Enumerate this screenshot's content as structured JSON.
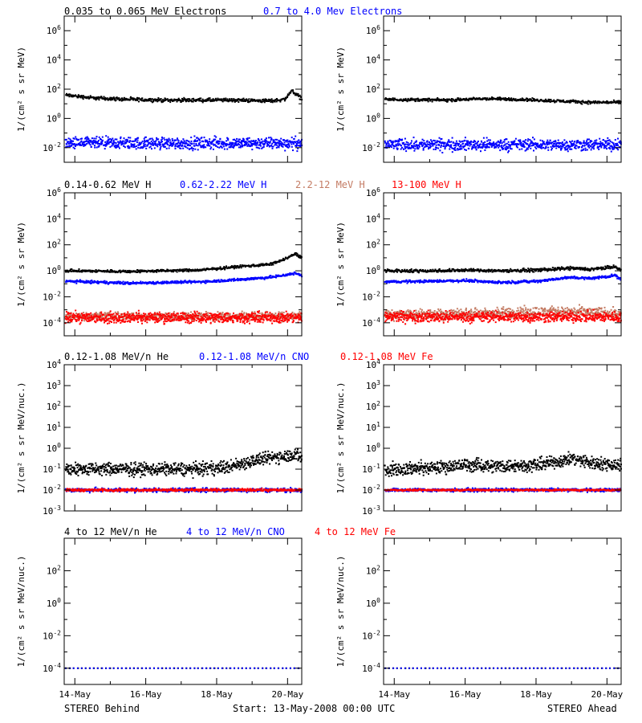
{
  "footer": {
    "left": "STEREO Behind",
    "center": "Start: 13-May-2008 00:00 UTC",
    "right": "STEREO Ahead"
  },
  "x_axis": {
    "unit": "days since 13-May-2008 00:00 UTC",
    "range": [
      0.7,
      7.4
    ],
    "tick_labels": [
      "14-May",
      "16-May",
      "18-May",
      "20-May"
    ],
    "tick_values": [
      1,
      3,
      5,
      7
    ]
  },
  "rows": [
    {
      "legend": [
        {
          "text": "0.035 to 0.065 MeV Electrons",
          "color": "#000000"
        },
        {
          "text": "0.7 to 4.0 Mev Electrons",
          "color": "#0000ff"
        }
      ],
      "ylabel": "1/(cm² s sr MeV)",
      "yrange_log10": [
        -3,
        7
      ],
      "ytick_exponents": [
        -2,
        0,
        2,
        4,
        6
      ]
    },
    {
      "legend": [
        {
          "text": "0.14-0.62 MeV H",
          "color": "#000000"
        },
        {
          "text": "0.62-2.22 MeV H",
          "color": "#0000ff"
        },
        {
          "text": "2.2-12 MeV H",
          "color": "#c47c64"
        },
        {
          "text": "13-100 MeV H",
          "color": "#ff0000"
        }
      ],
      "ylabel": "1/(cm² s sr MeV)",
      "yrange_log10": [
        -5,
        6
      ],
      "ytick_exponents": [
        -4,
        -2,
        0,
        2,
        4,
        6
      ]
    },
    {
      "legend": [
        {
          "text": "0.12-1.08 MeV/n He",
          "color": "#000000"
        },
        {
          "text": "0.12-1.08 MeV/n CNO",
          "color": "#0000ff"
        },
        {
          "text": "0.12-1.08 MeV Fe",
          "color": "#ff0000"
        }
      ],
      "ylabel": "1/(cm² s sr MeV/nuc.)",
      "yrange_log10": [
        -3,
        4
      ],
      "ytick_exponents": [
        -3,
        -2,
        -1,
        0,
        1,
        2,
        3,
        4
      ]
    },
    {
      "legend": [
        {
          "text": "4 to 12 MeV/n He",
          "color": "#000000"
        },
        {
          "text": "4 to 12 MeV/n CNO",
          "color": "#0000ff"
        },
        {
          "text": "4 to 12 MeV Fe",
          "color": "#ff0000"
        }
      ],
      "ylabel": "1/(cm² s sr MeV/nuc.)",
      "yrange_log10": [
        -5,
        4
      ],
      "ytick_exponents": [
        -4,
        -2,
        0,
        2
      ]
    }
  ],
  "chart_data": [
    {
      "type": "scatter",
      "spacecraft": "STEREO Behind",
      "row": 0,
      "yscale": "log",
      "series": [
        {
          "name": "0.035 to 0.065 MeV Electrons",
          "color": "#000000",
          "x": [
            0.7,
            1.5,
            2.5,
            3.5,
            4.5,
            5.5,
            6.5,
            6.9,
            7.1,
            7.4
          ],
          "y_log10": [
            1.6,
            1.4,
            1.3,
            1.25,
            1.25,
            1.25,
            1.2,
            1.3,
            1.9,
            1.3
          ],
          "scatter_dex": 0.06
        },
        {
          "name": "0.7 to 4.0 Mev Electrons",
          "color": "#0000ff",
          "x": [
            0.7,
            7.4
          ],
          "y_log10": [
            -1.7,
            -1.7
          ],
          "scatter_dex": 0.2
        }
      ]
    },
    {
      "type": "scatter",
      "spacecraft": "STEREO Ahead",
      "row": 0,
      "yscale": "log",
      "series": [
        {
          "name": "0.035 to 0.065 MeV Electrons",
          "color": "#000000",
          "x": [
            0.7,
            2.5,
            3.5,
            4.5,
            5.5,
            6.5,
            7.4
          ],
          "y_log10": [
            1.3,
            1.25,
            1.35,
            1.3,
            1.2,
            1.1,
            1.1
          ],
          "scatter_dex": 0.05
        },
        {
          "name": "0.7 to 4.0 Mev Electrons",
          "color": "#0000ff",
          "x": [
            0.7,
            7.4
          ],
          "y_log10": [
            -1.8,
            -1.8
          ],
          "scatter_dex": 0.2
        }
      ]
    },
    {
      "type": "scatter",
      "spacecraft": "STEREO Behind",
      "row": 1,
      "yscale": "log",
      "series": [
        {
          "name": "0.14-0.62 MeV H",
          "color": "#000000",
          "x": [
            0.7,
            2.5,
            4.5,
            5.5,
            6.5,
            6.9,
            7.2,
            7.4
          ],
          "y_log10": [
            0.0,
            -0.05,
            0.05,
            0.3,
            0.5,
            0.9,
            1.3,
            1.0
          ],
          "scatter_dex": 0.05
        },
        {
          "name": "0.62-2.22 MeV H",
          "color": "#0000ff",
          "x": [
            0.7,
            2.5,
            4.5,
            5.5,
            6.5,
            7.2,
            7.4
          ],
          "y_log10": [
            -0.8,
            -0.95,
            -0.85,
            -0.7,
            -0.5,
            -0.2,
            -0.35
          ],
          "scatter_dex": 0.05
        },
        {
          "name": "2.2-12 MeV H",
          "color": "#c47c64",
          "x": [
            0.7,
            7.4
          ],
          "y_log10": [
            -3.5,
            -3.5
          ],
          "scatter_dex": 0.15
        },
        {
          "name": "13-100 MeV H",
          "color": "#ff0000",
          "x": [
            0.7,
            7.4
          ],
          "y_log10": [
            -3.6,
            -3.6
          ],
          "scatter_dex": 0.2
        }
      ]
    },
    {
      "type": "scatter",
      "spacecraft": "STEREO Ahead",
      "row": 1,
      "yscale": "log",
      "series": [
        {
          "name": "0.14-0.62 MeV H",
          "color": "#000000",
          "x": [
            0.7,
            2.0,
            3.0,
            4.0,
            5.0,
            6.0,
            6.5,
            7.2,
            7.4
          ],
          "y_log10": [
            0.0,
            0.0,
            0.05,
            0.0,
            0.05,
            0.2,
            0.1,
            0.3,
            0.0
          ],
          "scatter_dex": 0.06
        },
        {
          "name": "0.62-2.22 MeV H",
          "color": "#0000ff",
          "x": [
            0.7,
            2.0,
            3.0,
            4.0,
            5.0,
            6.0,
            6.5,
            7.2,
            7.4
          ],
          "y_log10": [
            -0.85,
            -0.8,
            -0.75,
            -0.9,
            -0.8,
            -0.5,
            -0.6,
            -0.35,
            -0.7
          ],
          "scatter_dex": 0.05
        },
        {
          "name": "2.2-12 MeV H",
          "color": "#c47c64",
          "x": [
            0.7,
            3.5,
            5.0,
            6.5,
            7.4
          ],
          "y_log10": [
            -3.4,
            -3.3,
            -3.15,
            -3.2,
            -3.3
          ],
          "scatter_dex": 0.2
        },
        {
          "name": "13-100 MeV H",
          "color": "#ff0000",
          "x": [
            0.7,
            7.4
          ],
          "y_log10": [
            -3.55,
            -3.55
          ],
          "scatter_dex": 0.2
        }
      ]
    },
    {
      "type": "scatter",
      "spacecraft": "STEREO Behind",
      "row": 2,
      "yscale": "log",
      "series": [
        {
          "name": "0.12-1.08 MeV/n He",
          "color": "#000000",
          "x": [
            0.7,
            2.5,
            4.5,
            5.3,
            6.0,
            6.7,
            7.2,
            7.4
          ],
          "y_log10": [
            -1.0,
            -1.0,
            -1.0,
            -0.9,
            -0.6,
            -0.4,
            -0.3,
            -0.5
          ],
          "scatter_dex": 0.15
        },
        {
          "name": "0.12-1.08 MeV/n CNO",
          "color": "#0000ff",
          "x": [
            0.7,
            7.4
          ],
          "y_log10": [
            -2.0,
            -2.0
          ],
          "scatter_dex": 0.05
        },
        {
          "name": "0.12-1.08 MeV Fe",
          "color": "#ff0000",
          "x": [
            0.7,
            7.4
          ],
          "y_log10": [
            -2.0,
            -2.0
          ],
          "scatter_dex": 0.03
        }
      ]
    },
    {
      "type": "scatter",
      "spacecraft": "STEREO Ahead",
      "row": 2,
      "yscale": "log",
      "series": [
        {
          "name": "0.12-1.08 MeV/n He",
          "color": "#000000",
          "x": [
            0.7,
            2.0,
            3.0,
            4.0,
            5.0,
            6.0,
            6.5,
            7.4
          ],
          "y_log10": [
            -1.0,
            -0.95,
            -0.8,
            -0.85,
            -0.8,
            -0.5,
            -0.7,
            -0.8
          ],
          "scatter_dex": 0.15
        },
        {
          "name": "0.12-1.08 MeV/n CNO",
          "color": "#0000ff",
          "x": [
            0.7,
            7.4
          ],
          "y_log10": [
            -2.0,
            -2.0
          ],
          "scatter_dex": 0.04
        },
        {
          "name": "0.12-1.08 MeV Fe",
          "color": "#ff0000",
          "x": [
            0.7,
            7.4
          ],
          "y_log10": [
            -2.0,
            -2.0
          ],
          "scatter_dex": 0.02
        }
      ]
    },
    {
      "type": "scatter",
      "spacecraft": "STEREO Behind",
      "row": 3,
      "yscale": "log",
      "series": [
        {
          "name": "4 to 12 MeV/n He",
          "color": "#000000",
          "x": [
            0.7,
            7.4
          ],
          "y_log10": [
            -4.0,
            -4.0
          ],
          "scatter_dex": 0.0
        },
        {
          "name": "4 to 12 MeV/n CNO",
          "color": "#0000ff",
          "x": [
            0.7,
            7.4
          ],
          "y_log10": [
            -4.0,
            -4.0
          ],
          "scatter_dex": 0.0
        }
      ]
    },
    {
      "type": "scatter",
      "spacecraft": "STEREO Ahead",
      "row": 3,
      "yscale": "log",
      "series": [
        {
          "name": "4 to 12 MeV/n He",
          "color": "#000000",
          "x": [
            0.7,
            7.4
          ],
          "y_log10": [
            -4.0,
            -4.0
          ],
          "scatter_dex": 0.0
        },
        {
          "name": "4 to 12 MeV/n CNO",
          "color": "#0000ff",
          "x": [
            0.7,
            7.4
          ],
          "y_log10": [
            -4.0,
            -4.0
          ],
          "scatter_dex": 0.0
        }
      ]
    }
  ]
}
